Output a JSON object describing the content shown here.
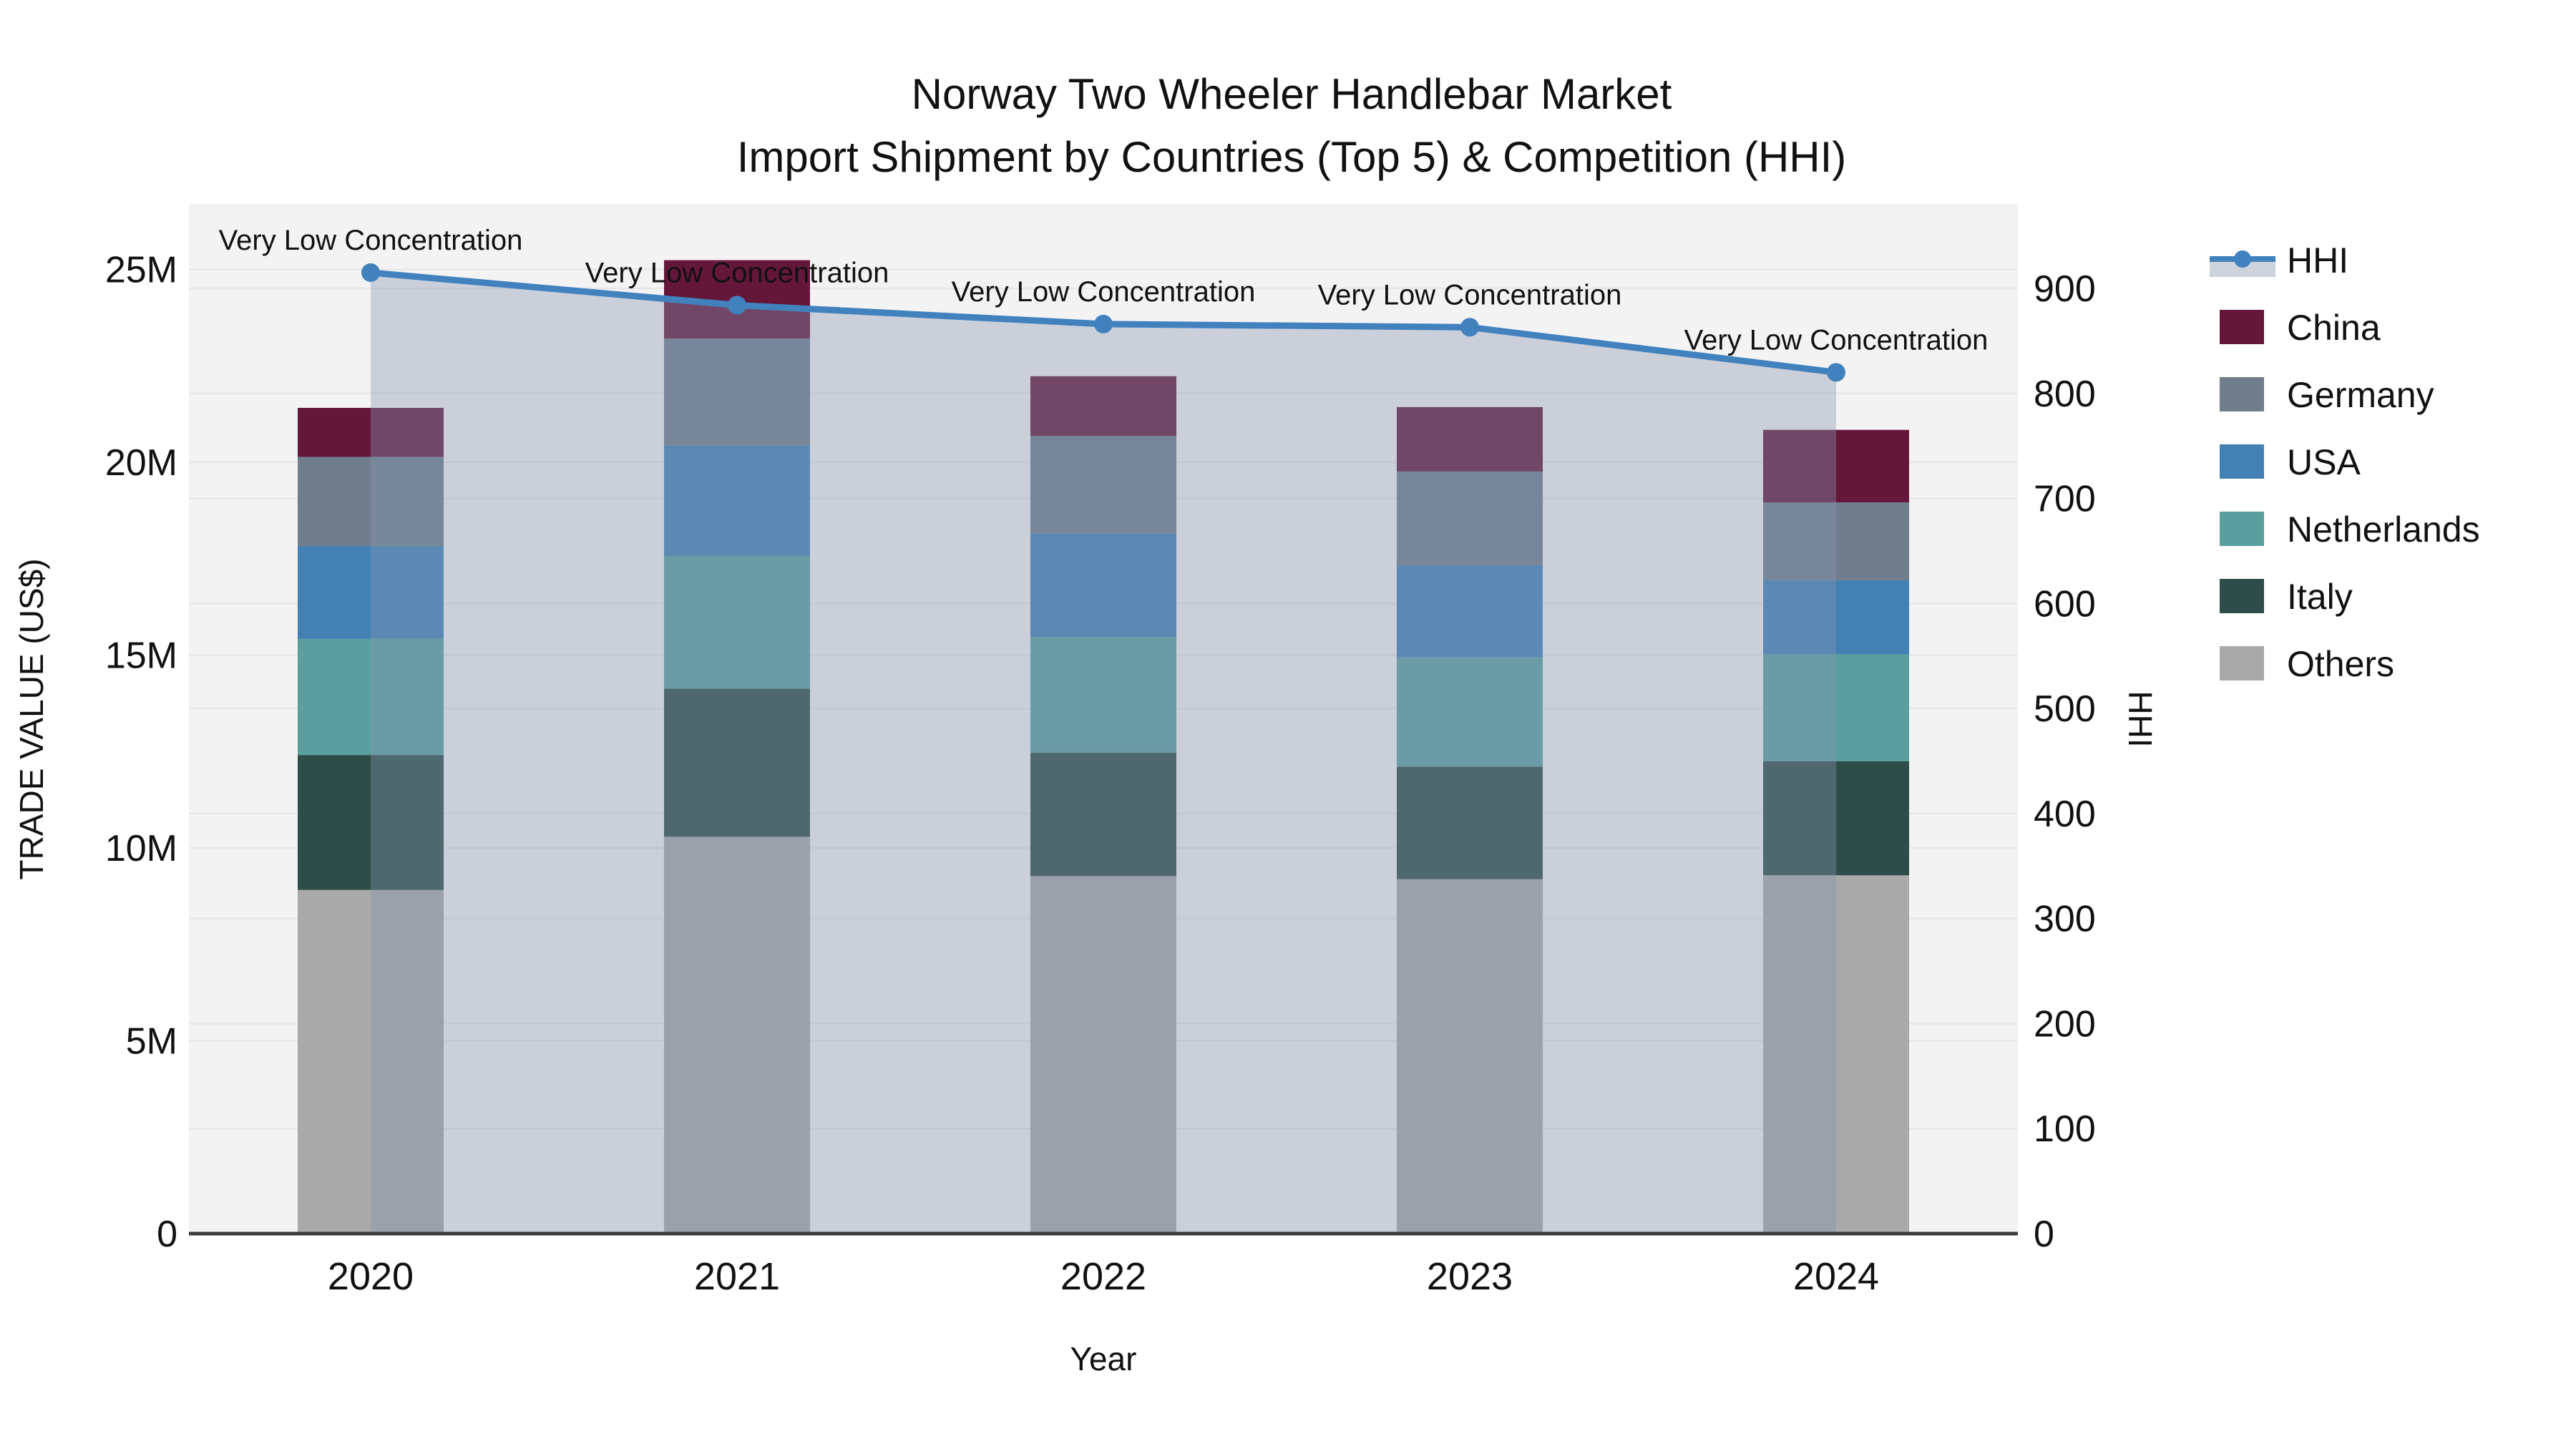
{
  "title": {
    "line1": "Norway Two Wheeler Handlebar Market",
    "line2": "Import Shipment by Countries (Top 5) & Competition (HHI)"
  },
  "axes": {
    "y_left": {
      "title": "TRADE VALUE (US$)",
      "tick_labels": [
        "0",
        "5M",
        "10M",
        "15M",
        "20M",
        "25M"
      ],
      "tick_values_millions": [
        0,
        5,
        10,
        15,
        20,
        25
      ]
    },
    "y_right": {
      "title": "HHI",
      "tick_labels": [
        "0",
        "100",
        "200",
        "300",
        "400",
        "500",
        "600",
        "700",
        "800",
        "900"
      ],
      "tick_values": [
        0,
        100,
        200,
        300,
        400,
        500,
        600,
        700,
        800,
        900
      ]
    },
    "x": {
      "title": "Year",
      "tick_labels": [
        "2020",
        "2021",
        "2022",
        "2023",
        "2024"
      ]
    }
  },
  "legend": {
    "items": [
      {
        "label": "HHI",
        "type": "line"
      },
      {
        "label": "China",
        "type": "swatch",
        "color": "#65173a"
      },
      {
        "label": "Germany",
        "type": "swatch",
        "color": "#6f7d8c"
      },
      {
        "label": "USA",
        "type": "swatch",
        "color": "#4381b5"
      },
      {
        "label": "Netherlands",
        "type": "swatch",
        "color": "#5b9e9e"
      },
      {
        "label": "Italy",
        "type": "swatch",
        "color": "#2e4d49"
      },
      {
        "label": "Others",
        "type": "swatch",
        "color": "#a9a9a9"
      }
    ]
  },
  "colors": {
    "hhi_line": "#4181bd",
    "hhi_area_fill": "rgba(134,150,175,0.38)",
    "hhi_legend_band": "#ccd3dd",
    "plot_background": "#f4f3f4",
    "gridline": "#e7e7e7",
    "axis_line": "#3a3a3a",
    "china": "#65173a",
    "germany": "#6f7d8c",
    "usa": "#4381b5",
    "netherlands": "#5b9e9e",
    "italy": "#2e4d49",
    "others": "#a9a9a9"
  },
  "chart_data": {
    "type": "bar",
    "subtype": "stacked bars with secondary-axis line+area",
    "categories": [
      "2020",
      "2021",
      "2022",
      "2023",
      "2024"
    ],
    "bar_value_unit": "US$ millions",
    "series": [
      {
        "name": "Others",
        "color": "#a9a9a9",
        "values": [
          8.91,
          10.29,
          9.27,
          9.19,
          9.29
        ]
      },
      {
        "name": "Italy",
        "color": "#2e4d49",
        "values": [
          3.5,
          3.84,
          3.2,
          2.92,
          2.96
        ]
      },
      {
        "name": "Netherlands",
        "color": "#5b9e9e",
        "values": [
          3.01,
          3.44,
          3.0,
          2.83,
          2.77
        ]
      },
      {
        "name": "USA",
        "color": "#4381b5",
        "values": [
          2.41,
          2.86,
          2.69,
          2.39,
          1.92
        ]
      },
      {
        "name": "Germany",
        "color": "#6f7d8c",
        "values": [
          2.31,
          2.78,
          2.52,
          2.43,
          2.02
        ]
      },
      {
        "name": "China",
        "color": "#65173a",
        "values": [
          1.27,
          2.03,
          1.55,
          1.67,
          1.88
        ]
      }
    ],
    "bar_totals": [
      21.41,
      25.24,
      22.23,
      21.43,
      20.84
    ],
    "line_series": {
      "name": "HHI",
      "values": [
        915,
        884,
        866,
        863,
        820
      ],
      "axis": "right",
      "point_annotations": [
        "Very Low Concentration",
        "Very Low Concentration",
        "Very Low Concentration",
        "Very Low Concentration",
        "Very Low Concentration"
      ]
    },
    "xlabel": "Year",
    "ylabel_left": "TRADE VALUE (US$)",
    "ylabel_right": "HHI",
    "ylim_left_millions": [
      0,
      26.7
    ],
    "ylim_right": [
      0,
      980
    ],
    "grid": true,
    "legend_position": "right"
  }
}
